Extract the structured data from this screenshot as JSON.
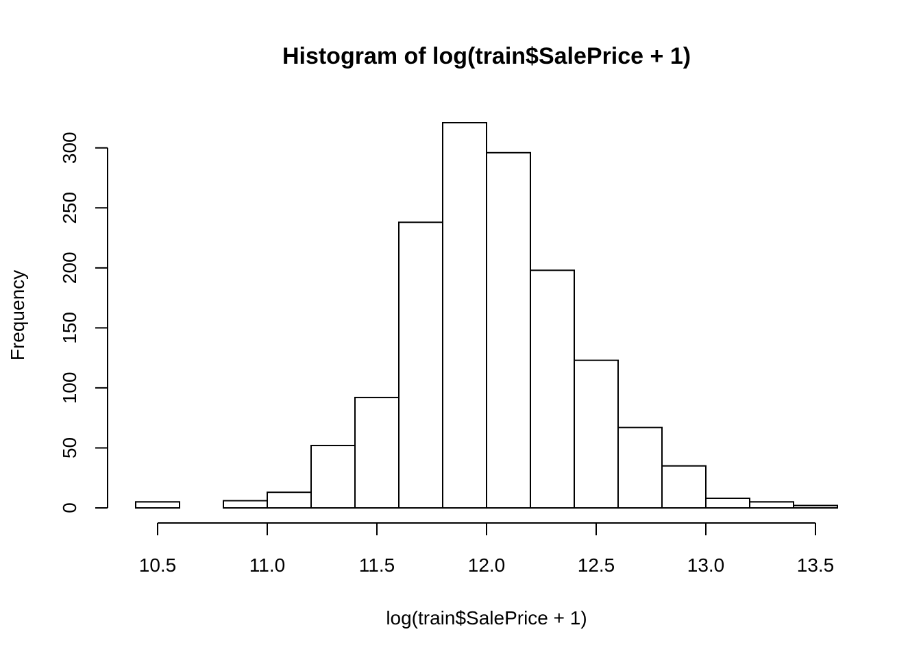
{
  "chart_data": {
    "type": "bar",
    "title": "Histogram of log(train$SalePrice + 1)",
    "xlabel": "log(train$SalePrice + 1)",
    "ylabel": "Frequency",
    "bins": [
      {
        "x0": 10.4,
        "x1": 10.6,
        "count": 5
      },
      {
        "x0": 10.6,
        "x1": 10.8,
        "count": 0
      },
      {
        "x0": 10.8,
        "x1": 11.0,
        "count": 6
      },
      {
        "x0": 11.0,
        "x1": 11.2,
        "count": 13
      },
      {
        "x0": 11.2,
        "x1": 11.4,
        "count": 52
      },
      {
        "x0": 11.4,
        "x1": 11.6,
        "count": 92
      },
      {
        "x0": 11.6,
        "x1": 11.8,
        "count": 238
      },
      {
        "x0": 11.8,
        "x1": 12.0,
        "count": 321
      },
      {
        "x0": 12.0,
        "x1": 12.2,
        "count": 296
      },
      {
        "x0": 12.2,
        "x1": 12.4,
        "count": 198
      },
      {
        "x0": 12.4,
        "x1": 12.6,
        "count": 123
      },
      {
        "x0": 12.6,
        "x1": 12.8,
        "count": 67
      },
      {
        "x0": 12.8,
        "x1": 13.0,
        "count": 35
      },
      {
        "x0": 13.0,
        "x1": 13.2,
        "count": 8
      },
      {
        "x0": 13.2,
        "x1": 13.4,
        "count": 5
      },
      {
        "x0": 13.4,
        "x1": 13.6,
        "count": 2
      }
    ],
    "xlim": [
      10.4,
      13.6
    ],
    "ylim": [
      0,
      321
    ],
    "x_ticks": [
      10.5,
      11.0,
      11.5,
      12.0,
      12.5,
      13.0,
      13.5
    ],
    "x_tick_labels": [
      "10.5",
      "11.0",
      "11.5",
      "12.0",
      "12.5",
      "13.0",
      "13.5"
    ],
    "y_ticks": [
      0,
      50,
      100,
      150,
      200,
      250,
      300
    ],
    "y_tick_labels": [
      "0",
      "50",
      "100",
      "150",
      "200",
      "250",
      "300"
    ],
    "grid": false,
    "legend": "none"
  }
}
